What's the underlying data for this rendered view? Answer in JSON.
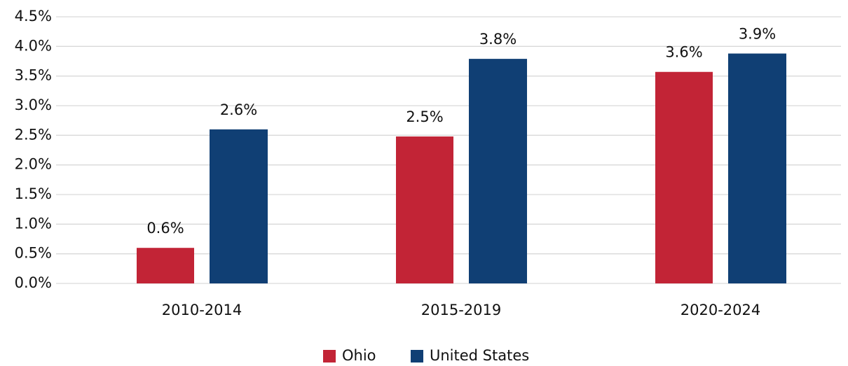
{
  "chart_data": {
    "type": "bar",
    "categories": [
      "2010-2014",
      "2015-2019",
      "2020-2024"
    ],
    "series": [
      {
        "name": "Ohio",
        "color": "#c22436",
        "values": [
          0.6,
          2.48,
          3.57
        ],
        "value_labels": [
          "0.6%",
          "2.5%",
          "3.6%"
        ]
      },
      {
        "name": "United States",
        "color": "#103f74",
        "values": [
          2.6,
          3.79,
          3.88
        ],
        "value_labels": [
          "2.6%",
          "3.8%",
          "3.9%"
        ]
      }
    ],
    "ylim": [
      0,
      4.5
    ],
    "yticks": [
      {
        "value": 0,
        "label": "0.0%"
      },
      {
        "value": 0.5,
        "label": "0.5%"
      },
      {
        "value": 1,
        "label": "1.0%"
      },
      {
        "value": 1.5,
        "label": "1.5%"
      },
      {
        "value": 2,
        "label": "2.0%"
      },
      {
        "value": 2.5,
        "label": "2.5%"
      },
      {
        "value": 3,
        "label": "3.0%"
      },
      {
        "value": 3.5,
        "label": "3.5%"
      },
      {
        "value": 4,
        "label": "4.0%"
      },
      {
        "value": 4.5,
        "label": "4.5%"
      }
    ],
    "grid": true,
    "legend": "bottom"
  }
}
